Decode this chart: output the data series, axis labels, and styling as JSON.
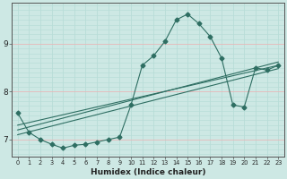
{
  "xlabel": "Humidex (Indice chaleur)",
  "background_color": "#cde8e4",
  "line_color": "#2e6e62",
  "grid_color_white": "#b8ddd8",
  "grid_color_red": "#e8b8b8",
  "xlim": [
    -0.5,
    23.5
  ],
  "ylim": [
    6.65,
    9.85
  ],
  "yticks": [
    7,
    8,
    9
  ],
  "xticks": [
    0,
    1,
    2,
    3,
    4,
    5,
    6,
    7,
    8,
    9,
    10,
    11,
    12,
    13,
    14,
    15,
    16,
    17,
    18,
    19,
    20,
    21,
    22,
    23
  ],
  "main_series": {
    "x": [
      0,
      1,
      2,
      3,
      4,
      5,
      6,
      7,
      8,
      9,
      10,
      11,
      12,
      13,
      14,
      15,
      16,
      17,
      18,
      19,
      20,
      21,
      22,
      23
    ],
    "y": [
      7.55,
      7.15,
      7.0,
      6.9,
      6.82,
      6.88,
      6.9,
      6.95,
      7.0,
      7.05,
      7.72,
      8.55,
      8.75,
      9.05,
      9.5,
      9.62,
      9.42,
      9.15,
      8.7,
      7.72,
      7.68,
      8.5,
      8.45,
      8.55
    ]
  },
  "trend_lines": [
    {
      "x": [
        0,
        23
      ],
      "y": [
        7.3,
        8.55
      ]
    },
    {
      "x": [
        0,
        23
      ],
      "y": [
        7.2,
        8.62
      ]
    },
    {
      "x": [
        0,
        23
      ],
      "y": [
        7.1,
        8.48
      ]
    }
  ]
}
